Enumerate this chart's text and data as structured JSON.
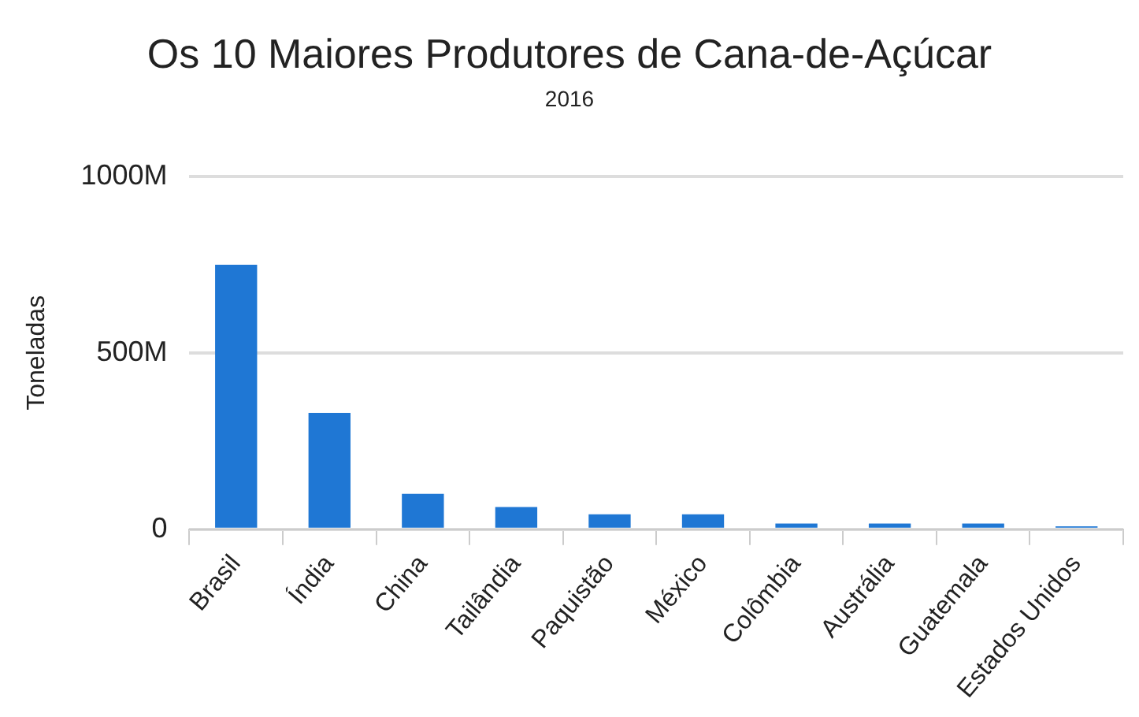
{
  "chart_data": {
    "type": "bar",
    "title": "Os 10 Maiores Produtores de Cana-de-Açúcar",
    "subtitle": "2016",
    "ylabel": "Toneladas",
    "categories": [
      "Brasil",
      "Índia",
      "China",
      "Tailândia",
      "Paquistão",
      "México",
      "Colômbia",
      "Austrália",
      "Guatemala",
      "Estados Unidos"
    ],
    "values": [
      750000000,
      330000000,
      100000000,
      63000000,
      42000000,
      42000000,
      16000000,
      16000000,
      16000000,
      8000000
    ],
    "color": "#1f77d4",
    "ylim": [
      0,
      1000000000
    ],
    "yticks": [
      {
        "value": 0,
        "label": "0"
      },
      {
        "value": 500000000,
        "label": "500M"
      },
      {
        "value": 1000000000,
        "label": "1000M"
      }
    ],
    "grid": "y",
    "legend": false
  }
}
